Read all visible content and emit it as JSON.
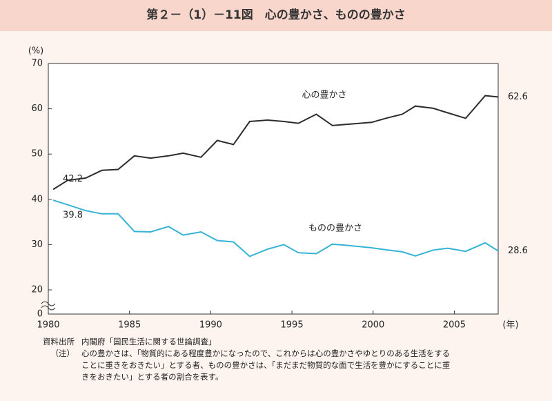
{
  "title": "第２－（1）－11図　心の豊かさ、ものの豊かさ",
  "chart_data": {
    "type": "line",
    "y_unit": "(%)",
    "x_unit": "(年)",
    "x": [
      1980.3,
      1981.2,
      1982.3,
      1983.3,
      1984.3,
      1985.3,
      1986.3,
      1987.4,
      1988.3,
      1989.4,
      1990.4,
      1991.4,
      1992.4,
      1993.5,
      1994.5,
      1995.4,
      1996.5,
      1997.5,
      1998.5,
      1999.9,
      2000.9,
      2001.8,
      2002.6,
      2003.7,
      2004.6,
      2005.7,
      2006.9,
      2007.7
    ],
    "series": [
      {
        "name": "心の豊かさ",
        "color": "#2b2b2b",
        "values": [
          42.2,
          44.2,
          44.7,
          46.4,
          46.6,
          49.6,
          49.1,
          49.6,
          50.2,
          49.3,
          53.0,
          52.1,
          57.2,
          57.5,
          57.2,
          56.8,
          58.8,
          56.3,
          56.6,
          57.0,
          58.0,
          58.8,
          60.6,
          60.1,
          59.1,
          57.9,
          62.9,
          62.6
        ],
        "value_labels": [
          "42.2",
          null,
          null,
          null,
          null,
          null,
          null,
          null,
          null,
          null,
          null,
          null,
          null,
          null,
          null,
          null,
          null,
          null,
          null,
          null,
          null,
          null,
          null,
          null,
          null,
          null,
          null,
          "62.6"
        ]
      },
      {
        "name": "ものの豊かさ",
        "color": "#35b3d6",
        "values": [
          39.8,
          38.8,
          37.5,
          36.8,
          36.8,
          32.9,
          32.8,
          34.0,
          32.1,
          32.8,
          30.9,
          30.6,
          27.4,
          29.0,
          30.0,
          28.2,
          28.0,
          30.1,
          29.8,
          29.3,
          28.8,
          28.4,
          27.5,
          28.8,
          29.2,
          28.5,
          30.4,
          28.6
        ],
        "value_labels": [
          "39.8",
          null,
          null,
          null,
          null,
          null,
          null,
          null,
          null,
          null,
          null,
          null,
          null,
          null,
          null,
          null,
          null,
          null,
          null,
          null,
          null,
          null,
          null,
          null,
          null,
          null,
          null,
          "28.6"
        ]
      }
    ],
    "xlim": [
      1980,
      2007.7
    ],
    "xticks": [
      1980,
      1985,
      1990,
      1995,
      2000,
      2005
    ],
    "ylim": [
      0,
      70
    ],
    "yticks": [
      0,
      20,
      30,
      40,
      50,
      60,
      70
    ],
    "axis_break": true,
    "grid": false
  },
  "footer": {
    "source_label": "資料出所",
    "source": "内閣府「国民生活に関する世論調査」",
    "note_label": "（注）",
    "note_lines": [
      "心の豊かさは、「物質的にある程度豊かになったので、これからは心の豊かさやゆとりのある生活をする",
      "ことに重きをおきたい」とする者、ものの豊かさは、「まだまだ物質的な面で生活を豊かにすることに重",
      "きをおきたい」とする者の割合を表す。"
    ]
  }
}
